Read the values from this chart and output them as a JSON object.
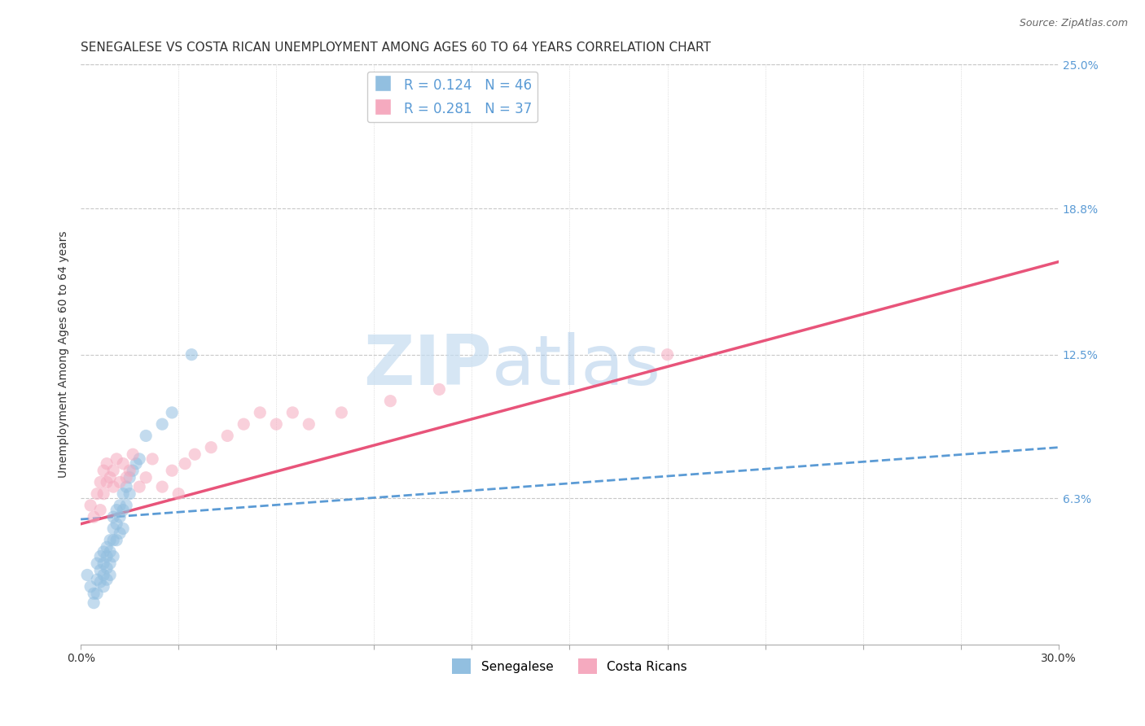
{
  "title": "SENEGALESE VS COSTA RICAN UNEMPLOYMENT AMONG AGES 60 TO 64 YEARS CORRELATION CHART",
  "source": "Source: ZipAtlas.com",
  "ylabel": "Unemployment Among Ages 60 to 64 years",
  "xlim": [
    0.0,
    0.3
  ],
  "ylim": [
    0.0,
    0.25
  ],
  "ytick_labels_right": [
    "6.3%",
    "12.5%",
    "18.8%",
    "25.0%"
  ],
  "yticks_right": [
    0.063,
    0.125,
    0.188,
    0.25
  ],
  "watermark_zip": "ZIP",
  "watermark_atlas": "atlas",
  "senegalese_color": "#92BFE0",
  "costa_rican_color": "#F5AABF",
  "trend_senegalese_color": "#5B9BD5",
  "trend_costa_rican_color": "#E8547A",
  "background_color": "#FFFFFF",
  "grid_color": "#C8C8C8",
  "senegalese_x": [
    0.002,
    0.003,
    0.004,
    0.004,
    0.005,
    0.005,
    0.005,
    0.006,
    0.006,
    0.006,
    0.007,
    0.007,
    0.007,
    0.007,
    0.008,
    0.008,
    0.008,
    0.008,
    0.009,
    0.009,
    0.009,
    0.009,
    0.01,
    0.01,
    0.01,
    0.01,
    0.011,
    0.011,
    0.011,
    0.012,
    0.012,
    0.012,
    0.013,
    0.013,
    0.013,
    0.014,
    0.014,
    0.015,
    0.015,
    0.016,
    0.017,
    0.018,
    0.02,
    0.025,
    0.028,
    0.034
  ],
  "senegalese_y": [
    0.03,
    0.025,
    0.022,
    0.018,
    0.035,
    0.028,
    0.022,
    0.038,
    0.032,
    0.027,
    0.04,
    0.035,
    0.03,
    0.025,
    0.042,
    0.038,
    0.033,
    0.028,
    0.045,
    0.04,
    0.035,
    0.03,
    0.055,
    0.05,
    0.045,
    0.038,
    0.058,
    0.052,
    0.045,
    0.06,
    0.055,
    0.048,
    0.065,
    0.058,
    0.05,
    0.068,
    0.06,
    0.072,
    0.065,
    0.075,
    0.078,
    0.08,
    0.09,
    0.095,
    0.1,
    0.125
  ],
  "costa_rican_x": [
    0.003,
    0.004,
    0.005,
    0.006,
    0.006,
    0.007,
    0.007,
    0.008,
    0.008,
    0.009,
    0.01,
    0.01,
    0.011,
    0.012,
    0.013,
    0.014,
    0.015,
    0.016,
    0.018,
    0.02,
    0.022,
    0.025,
    0.028,
    0.03,
    0.032,
    0.035,
    0.04,
    0.045,
    0.05,
    0.055,
    0.06,
    0.065,
    0.07,
    0.08,
    0.095,
    0.11,
    0.18
  ],
  "costa_rican_y": [
    0.06,
    0.055,
    0.065,
    0.058,
    0.07,
    0.065,
    0.075,
    0.07,
    0.078,
    0.072,
    0.068,
    0.075,
    0.08,
    0.07,
    0.078,
    0.072,
    0.075,
    0.082,
    0.068,
    0.072,
    0.08,
    0.068,
    0.075,
    0.065,
    0.078,
    0.082,
    0.085,
    0.09,
    0.095,
    0.1,
    0.095,
    0.1,
    0.095,
    0.1,
    0.105,
    0.11,
    0.125
  ],
  "title_fontsize": 11,
  "axis_label_fontsize": 10,
  "tick_fontsize": 10,
  "legend_fontsize": 12,
  "scatter_size": 120,
  "scatter_alpha": 0.55
}
